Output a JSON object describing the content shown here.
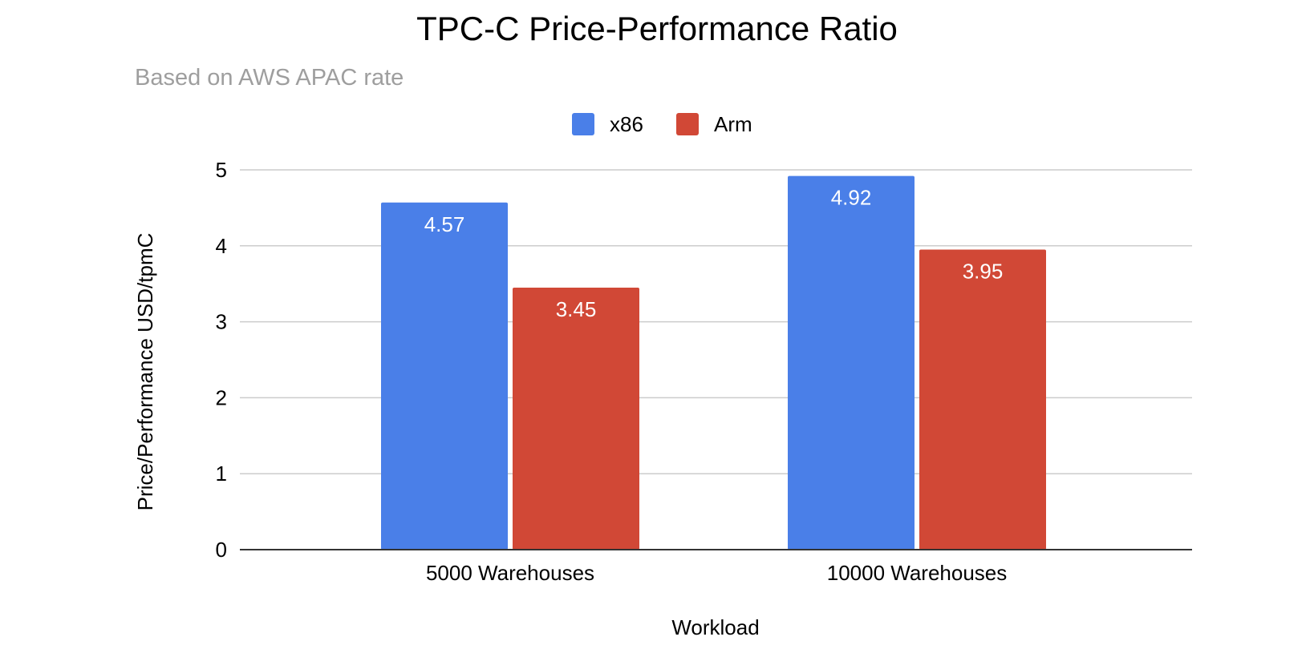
{
  "chart_data": {
    "type": "bar",
    "title": "TPC-C Price-Performance Ratio",
    "subtitle": "Based on AWS APAC rate",
    "xlabel": "Workload",
    "ylabel": "Price/Performance USD/tpmC",
    "categories": [
      "5000 Warehouses",
      "10000 Warehouses"
    ],
    "series": [
      {
        "name": "x86",
        "values": [
          4.57,
          4.92
        ],
        "color": "#4a7fe8"
      },
      {
        "name": "Arm",
        "values": [
          3.45,
          3.95
        ],
        "color": "#d14836"
      }
    ],
    "ylim": [
      0,
      5
    ],
    "yticks": [
      0,
      1,
      2,
      3,
      4,
      5
    ],
    "grid": true,
    "legend_position": "top-center",
    "data_labels": true
  }
}
